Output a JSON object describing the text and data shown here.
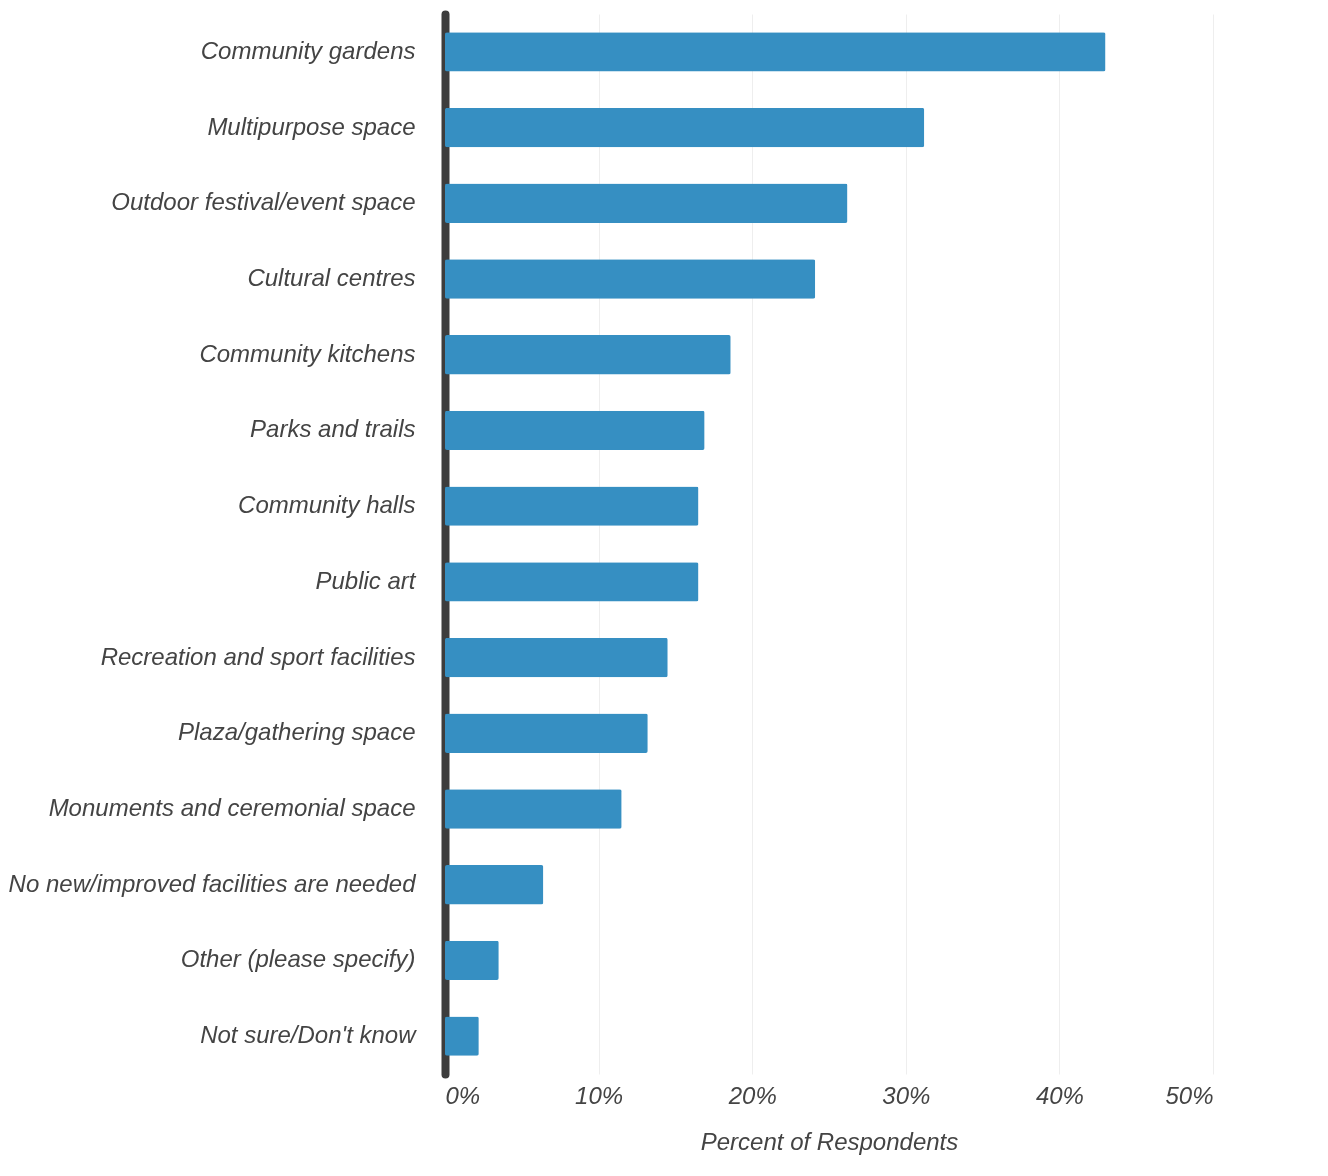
{
  "chart_data": {
    "type": "bar",
    "orientation": "horizontal",
    "xlabel": "Percent of Respondents",
    "categories": [
      "Community gardens",
      "Multipurpose space",
      "Outdoor festival/event space",
      "Cultural centres",
      "Community kitchens",
      "Parks and trails",
      "Community halls",
      "Public art",
      "Recreation and sport facilities",
      "Plaza/gathering space",
      "Monuments and ceremonial space",
      "No new/improved facilities are needed",
      "Other (please specify)",
      "Not sure/Don't know"
    ],
    "values": [
      43.0,
      31.2,
      26.2,
      24.1,
      18.6,
      16.9,
      16.5,
      16.5,
      14.5,
      13.2,
      11.5,
      6.4,
      3.5,
      2.2
    ],
    "color": "#368fc2",
    "xlim": [
      0,
      50
    ],
    "xticks": [
      {
        "value": 0,
        "label": "0%"
      },
      {
        "value": 10,
        "label": "10%"
      },
      {
        "value": 20,
        "label": "20%"
      },
      {
        "value": 30,
        "label": "30%"
      },
      {
        "value": 40,
        "label": "40%"
      },
      {
        "value": 50,
        "label": "50%"
      }
    ],
    "grid": "x"
  }
}
